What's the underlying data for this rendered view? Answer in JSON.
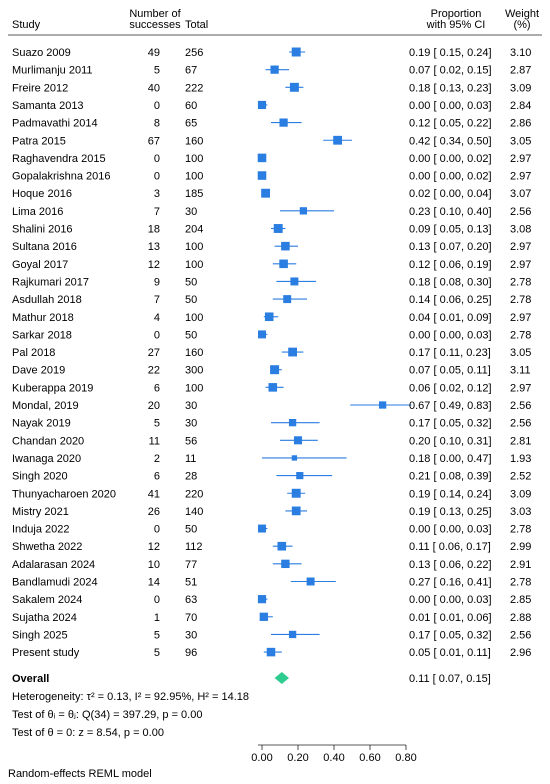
{
  "chart_data": {
    "type": "forest",
    "columns": {
      "study": "Study",
      "successes": [
        "Number of",
        "successes"
      ],
      "total": "Total",
      "estimate": [
        "Proportion",
        "with 95% CI"
      ],
      "weight": [
        "Weight",
        "(%)"
      ]
    },
    "xlim": [
      0,
      0.8
    ],
    "xticks": [
      "0.00",
      "0.20",
      "0.40",
      "0.60",
      "0.80"
    ],
    "xtick_values": [
      0,
      0.2,
      0.4,
      0.6,
      0.8
    ],
    "colors": {
      "marker": "#2a7de1",
      "overall": "#2ecc8f",
      "text": "#111111"
    },
    "studies": [
      {
        "name": "Suazo 2009",
        "successes": "49",
        "total": "256",
        "est": 0.19,
        "lo": 0.15,
        "hi": 0.24,
        "ci_text": "0.19 [ 0.15, 0.24]",
        "weight": "3.10"
      },
      {
        "name": "Murlimanju 2011",
        "successes": "5",
        "total": "67",
        "est": 0.07,
        "lo": 0.02,
        "hi": 0.15,
        "ci_text": "0.07 [ 0.02, 0.15]",
        "weight": "2.87"
      },
      {
        "name": "Freire 2012",
        "successes": "40",
        "total": "222",
        "est": 0.18,
        "lo": 0.13,
        "hi": 0.23,
        "ci_text": "0.18 [ 0.13, 0.23]",
        "weight": "3.09"
      },
      {
        "name": "Samanta 2013",
        "successes": "0",
        "total": "60",
        "est": 0.0,
        "lo": 0.0,
        "hi": 0.03,
        "ci_text": "0.00 [ 0.00, 0.03]",
        "weight": "2.84"
      },
      {
        "name": "Padmavathi 2014",
        "successes": "8",
        "total": "65",
        "est": 0.12,
        "lo": 0.05,
        "hi": 0.22,
        "ci_text": "0.12 [ 0.05, 0.22]",
        "weight": "2.86"
      },
      {
        "name": "Patra 2015",
        "successes": "67",
        "total": "160",
        "est": 0.42,
        "lo": 0.34,
        "hi": 0.5,
        "ci_text": "0.42 [ 0.34, 0.50]",
        "weight": "3.05"
      },
      {
        "name": "Raghavendra 2015",
        "successes": "0",
        "total": "100",
        "est": 0.0,
        "lo": 0.0,
        "hi": 0.02,
        "ci_text": "0.00 [ 0.00, 0.02]",
        "weight": "2.97"
      },
      {
        "name": "Gopalakrishna 2016",
        "successes": "0",
        "total": "100",
        "est": 0.0,
        "lo": 0.0,
        "hi": 0.02,
        "ci_text": "0.00 [ 0.00, 0.02]",
        "weight": "2.97"
      },
      {
        "name": "Hoque 2016",
        "successes": "3",
        "total": "185",
        "est": 0.02,
        "lo": 0.0,
        "hi": 0.04,
        "ci_text": "0.02 [ 0.00, 0.04]",
        "weight": "3.07"
      },
      {
        "name": "Lima 2016",
        "successes": "7",
        "total": "30",
        "est": 0.23,
        "lo": 0.1,
        "hi": 0.4,
        "ci_text": "0.23 [ 0.10, 0.40]",
        "weight": "2.56"
      },
      {
        "name": "Shalini 2016",
        "successes": "18",
        "total": "204",
        "est": 0.09,
        "lo": 0.05,
        "hi": 0.13,
        "ci_text": "0.09 [ 0.05, 0.13]",
        "weight": "3.08"
      },
      {
        "name": "Sultana 2016",
        "successes": "13",
        "total": "100",
        "est": 0.13,
        "lo": 0.07,
        "hi": 0.2,
        "ci_text": "0.13 [ 0.07, 0.20]",
        "weight": "2.97"
      },
      {
        "name": "Goyal 2017",
        "successes": "12",
        "total": "100",
        "est": 0.12,
        "lo": 0.06,
        "hi": 0.19,
        "ci_text": "0.12 [ 0.06, 0.19]",
        "weight": "2.97"
      },
      {
        "name": "Rajkumari 2017",
        "successes": "9",
        "total": "50",
        "est": 0.18,
        "lo": 0.08,
        "hi": 0.3,
        "ci_text": "0.18 [ 0.08, 0.30]",
        "weight": "2.78"
      },
      {
        "name": "Asdullah 2018",
        "successes": "7",
        "total": "50",
        "est": 0.14,
        "lo": 0.06,
        "hi": 0.25,
        "ci_text": "0.14 [ 0.06, 0.25]",
        "weight": "2.78"
      },
      {
        "name": "Mathur 2018",
        "successes": "4",
        "total": "100",
        "est": 0.04,
        "lo": 0.01,
        "hi": 0.09,
        "ci_text": "0.04 [ 0.01, 0.09]",
        "weight": "2.97"
      },
      {
        "name": "Sarkar 2018",
        "successes": "0",
        "total": "50",
        "est": 0.0,
        "lo": 0.0,
        "hi": 0.03,
        "ci_text": "0.00 [ 0.00, 0.03]",
        "weight": "2.78"
      },
      {
        "name": "Pal 2018",
        "successes": "27",
        "total": "160",
        "est": 0.17,
        "lo": 0.11,
        "hi": 0.23,
        "ci_text": "0.17 [ 0.11, 0.23]",
        "weight": "3.05"
      },
      {
        "name": "Dave 2019",
        "successes": "22",
        "total": "300",
        "est": 0.07,
        "lo": 0.05,
        "hi": 0.11,
        "ci_text": "0.07 [ 0.05, 0.11]",
        "weight": "3.11"
      },
      {
        "name": "Kuberappa 2019",
        "successes": "6",
        "total": "100",
        "est": 0.06,
        "lo": 0.02,
        "hi": 0.12,
        "ci_text": "0.06 [ 0.02, 0.12]",
        "weight": "2.97"
      },
      {
        "name": "Mondal, 2019",
        "successes": "20",
        "total": "30",
        "est": 0.67,
        "lo": 0.49,
        "hi": 0.83,
        "ci_text": "0.67 [ 0.49, 0.83]",
        "weight": "2.56"
      },
      {
        "name": "Nayak 2019",
        "successes": "5",
        "total": "30",
        "est": 0.17,
        "lo": 0.05,
        "hi": 0.32,
        "ci_text": "0.17 [ 0.05, 0.32]",
        "weight": "2.56"
      },
      {
        "name": "Chandan 2020",
        "successes": "11",
        "total": "56",
        "est": 0.2,
        "lo": 0.1,
        "hi": 0.31,
        "ci_text": "0.20 [ 0.10, 0.31]",
        "weight": "2.81"
      },
      {
        "name": "Iwanaga 2020",
        "successes": "2",
        "total": "11",
        "est": 0.18,
        "lo": 0.0,
        "hi": 0.47,
        "ci_text": "0.18 [ 0.00, 0.47]",
        "weight": "1.93"
      },
      {
        "name": "Singh 2020",
        "successes": "6",
        "total": "28",
        "est": 0.21,
        "lo": 0.08,
        "hi": 0.39,
        "ci_text": "0.21 [ 0.08, 0.39]",
        "weight": "2.52"
      },
      {
        "name": "Thunyacharoen 2020",
        "successes": "41",
        "total": "220",
        "est": 0.19,
        "lo": 0.14,
        "hi": 0.24,
        "ci_text": "0.19 [ 0.14, 0.24]",
        "weight": "3.09"
      },
      {
        "name": "Mistry 2021",
        "successes": "26",
        "total": "140",
        "est": 0.19,
        "lo": 0.13,
        "hi": 0.25,
        "ci_text": "0.19 [ 0.13, 0.25]",
        "weight": "3.03"
      },
      {
        "name": "Induja 2022",
        "successes": "0",
        "total": "50",
        "est": 0.0,
        "lo": 0.0,
        "hi": 0.03,
        "ci_text": "0.00 [ 0.00, 0.03]",
        "weight": "2.78"
      },
      {
        "name": "Shwetha 2022",
        "successes": "12",
        "total": "112",
        "est": 0.11,
        "lo": 0.06,
        "hi": 0.17,
        "ci_text": "0.11 [ 0.06, 0.17]",
        "weight": "2.99"
      },
      {
        "name": "Adalarasan 2024",
        "successes": "10",
        "total": "77",
        "est": 0.13,
        "lo": 0.06,
        "hi": 0.22,
        "ci_text": "0.13 [ 0.06, 0.22]",
        "weight": "2.91"
      },
      {
        "name": "Bandlamudi 2024",
        "successes": "14",
        "total": "51",
        "est": 0.27,
        "lo": 0.16,
        "hi": 0.41,
        "ci_text": "0.27 [ 0.16, 0.41]",
        "weight": "2.78"
      },
      {
        "name": "Sakalem 2024",
        "successes": "0",
        "total": "63",
        "est": 0.0,
        "lo": 0.0,
        "hi": 0.03,
        "ci_text": "0.00 [ 0.00, 0.03]",
        "weight": "2.85"
      },
      {
        "name": "Sujatha 2024",
        "successes": "1",
        "total": "70",
        "est": 0.01,
        "lo": 0.01,
        "hi": 0.06,
        "ci_text": "0.01 [ 0.01, 0.06]",
        "weight": "2.88"
      },
      {
        "name": "Singh 2025",
        "successes": "5",
        "total": "30",
        "est": 0.17,
        "lo": 0.05,
        "hi": 0.32,
        "ci_text": "0.17 [ 0.05, 0.32]",
        "weight": "2.56"
      },
      {
        "name": "Present study",
        "successes": "5",
        "total": "96",
        "est": 0.05,
        "lo": 0.01,
        "hi": 0.11,
        "ci_text": "0.05 [ 0.01, 0.11]",
        "weight": "2.96"
      }
    ],
    "overall": {
      "label": "Overall",
      "est": 0.11,
      "lo": 0.07,
      "hi": 0.15,
      "ci_text": "0.11 [ 0.07, 0.15]"
    },
    "stats": [
      "Heterogeneity: τ² = 0.13, I² = 92.95%, H² = 14.18",
      "Test of θᵢ = θⱼ: Q(34) = 397.29, p = 0.00",
      "Test of θ = 0: z = 8.54, p = 0.00"
    ],
    "footnote": "Random-effects REML model"
  }
}
